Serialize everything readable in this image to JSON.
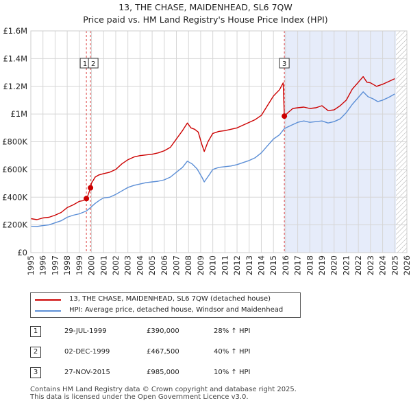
{
  "header": {
    "title": "13, THE CHASE, MAIDENHEAD, SL6 7QW",
    "subtitle": "Price paid vs. HM Land Registry's House Price Index (HPI)"
  },
  "chart_data": {
    "type": "line",
    "x_range": [
      1995,
      2026
    ],
    "ylim": [
      0,
      1600000
    ],
    "y_ticks": [
      {
        "value": 0,
        "label": "£0"
      },
      {
        "value": 200000,
        "label": "£200K"
      },
      {
        "value": 400000,
        "label": "£400K"
      },
      {
        "value": 600000,
        "label": "£600K"
      },
      {
        "value": 800000,
        "label": "£800K"
      },
      {
        "value": 1000000,
        "label": "£1M"
      },
      {
        "value": 1200000,
        "label": "£1.2M"
      },
      {
        "value": 1400000,
        "label": "£1.4M"
      },
      {
        "value": 1600000,
        "label": "£1.6M"
      }
    ],
    "x_ticks": [
      "1995",
      "1996",
      "1997",
      "1998",
      "1999",
      "2000",
      "2001",
      "2002",
      "2003",
      "2004",
      "2005",
      "2006",
      "2007",
      "2008",
      "2009",
      "2010",
      "2011",
      "2012",
      "2013",
      "2014",
      "2015",
      "2016",
      "2017",
      "2018",
      "2019",
      "2020",
      "2021",
      "2022",
      "2023",
      "2024",
      "2025",
      "2026"
    ],
    "grid": true,
    "shaded_region": {
      "from": 2015.9,
      "to": 2025.1
    },
    "forecast_hatch_from": 2025.1,
    "colors": {
      "property": "#cc0000",
      "hpi": "#5b8ed6",
      "shade": "#e6ecfa",
      "vline": "#dd4444"
    },
    "series": [
      {
        "name": "13, THE CHASE, MAIDENHEAD, SL6 7QW (detached house)",
        "color": "#cc0000",
        "points": [
          [
            1995.0,
            245000
          ],
          [
            1995.5,
            238000
          ],
          [
            1996.0,
            250000
          ],
          [
            1996.5,
            255000
          ],
          [
            1997.0,
            270000
          ],
          [
            1997.5,
            290000
          ],
          [
            1998.0,
            325000
          ],
          [
            1998.5,
            345000
          ],
          [
            1999.0,
            370000
          ],
          [
            1999.3,
            375000
          ],
          [
            1999.58,
            390000
          ],
          [
            1999.7,
            410000
          ],
          [
            1999.92,
            467500
          ],
          [
            2000.0,
            500000
          ],
          [
            2000.3,
            545000
          ],
          [
            2000.6,
            560000
          ],
          [
            2001.0,
            570000
          ],
          [
            2001.5,
            580000
          ],
          [
            2002.0,
            600000
          ],
          [
            2002.5,
            640000
          ],
          [
            2003.0,
            670000
          ],
          [
            2003.5,
            690000
          ],
          [
            2004.0,
            700000
          ],
          [
            2004.5,
            705000
          ],
          [
            2005.0,
            710000
          ],
          [
            2005.5,
            720000
          ],
          [
            2006.0,
            735000
          ],
          [
            2006.5,
            760000
          ],
          [
            2007.0,
            820000
          ],
          [
            2007.5,
            880000
          ],
          [
            2007.9,
            935000
          ],
          [
            2008.2,
            900000
          ],
          [
            2008.5,
            890000
          ],
          [
            2008.8,
            870000
          ],
          [
            2009.1,
            780000
          ],
          [
            2009.3,
            730000
          ],
          [
            2009.6,
            800000
          ],
          [
            2010.0,
            860000
          ],
          [
            2010.5,
            875000
          ],
          [
            2011.0,
            880000
          ],
          [
            2011.5,
            890000
          ],
          [
            2012.0,
            900000
          ],
          [
            2012.5,
            920000
          ],
          [
            2013.0,
            940000
          ],
          [
            2013.5,
            960000
          ],
          [
            2014.0,
            990000
          ],
          [
            2014.5,
            1060000
          ],
          [
            2015.0,
            1130000
          ],
          [
            2015.5,
            1175000
          ],
          [
            2015.8,
            1225000
          ],
          [
            2015.9,
            985000
          ],
          [
            2016.2,
            1010000
          ],
          [
            2016.6,
            1040000
          ],
          [
            2017.0,
            1045000
          ],
          [
            2017.5,
            1050000
          ],
          [
            2018.0,
            1040000
          ],
          [
            2018.5,
            1045000
          ],
          [
            2019.0,
            1060000
          ],
          [
            2019.5,
            1025000
          ],
          [
            2020.0,
            1030000
          ],
          [
            2020.5,
            1060000
          ],
          [
            2021.0,
            1100000
          ],
          [
            2021.5,
            1180000
          ],
          [
            2022.0,
            1230000
          ],
          [
            2022.4,
            1270000
          ],
          [
            2022.7,
            1230000
          ],
          [
            2023.0,
            1225000
          ],
          [
            2023.5,
            1200000
          ],
          [
            2024.0,
            1215000
          ],
          [
            2024.5,
            1235000
          ],
          [
            2025.0,
            1255000
          ]
        ]
      },
      {
        "name": "HPI: Average price, detached house, Windsor and Maidenhead",
        "color": "#5b8ed6",
        "points": [
          [
            1995.0,
            190000
          ],
          [
            1995.5,
            188000
          ],
          [
            1996.0,
            195000
          ],
          [
            1996.5,
            200000
          ],
          [
            1997.0,
            215000
          ],
          [
            1997.5,
            230000
          ],
          [
            1998.0,
            255000
          ],
          [
            1998.5,
            270000
          ],
          [
            1999.0,
            280000
          ],
          [
            1999.58,
            300000
          ],
          [
            1999.92,
            325000
          ],
          [
            2000.3,
            355000
          ],
          [
            2000.7,
            380000
          ],
          [
            2001.0,
            395000
          ],
          [
            2001.5,
            400000
          ],
          [
            2002.0,
            420000
          ],
          [
            2002.5,
            445000
          ],
          [
            2003.0,
            470000
          ],
          [
            2003.5,
            485000
          ],
          [
            2004.0,
            495000
          ],
          [
            2004.5,
            505000
          ],
          [
            2005.0,
            510000
          ],
          [
            2005.5,
            515000
          ],
          [
            2006.0,
            525000
          ],
          [
            2006.5,
            545000
          ],
          [
            2007.0,
            580000
          ],
          [
            2007.5,
            615000
          ],
          [
            2007.9,
            660000
          ],
          [
            2008.3,
            640000
          ],
          [
            2008.7,
            605000
          ],
          [
            2009.1,
            545000
          ],
          [
            2009.3,
            510000
          ],
          [
            2009.7,
            560000
          ],
          [
            2010.0,
            600000
          ],
          [
            2010.5,
            615000
          ],
          [
            2011.0,
            620000
          ],
          [
            2011.5,
            625000
          ],
          [
            2012.0,
            635000
          ],
          [
            2012.5,
            650000
          ],
          [
            2013.0,
            665000
          ],
          [
            2013.5,
            685000
          ],
          [
            2014.0,
            720000
          ],
          [
            2014.5,
            770000
          ],
          [
            2015.0,
            820000
          ],
          [
            2015.5,
            850000
          ],
          [
            2015.9,
            895000
          ],
          [
            2016.5,
            920000
          ],
          [
            2017.0,
            940000
          ],
          [
            2017.5,
            950000
          ],
          [
            2018.0,
            940000
          ],
          [
            2018.5,
            945000
          ],
          [
            2019.0,
            950000
          ],
          [
            2019.5,
            935000
          ],
          [
            2020.0,
            945000
          ],
          [
            2020.5,
            965000
          ],
          [
            2021.0,
            1010000
          ],
          [
            2021.5,
            1070000
          ],
          [
            2022.0,
            1120000
          ],
          [
            2022.4,
            1160000
          ],
          [
            2022.8,
            1125000
          ],
          [
            2023.2,
            1110000
          ],
          [
            2023.6,
            1090000
          ],
          [
            2024.0,
            1100000
          ],
          [
            2024.5,
            1120000
          ],
          [
            2025.0,
            1145000
          ]
        ]
      }
    ],
    "sales_markers": [
      {
        "id": "1",
        "date": 1999.58,
        "value": 390000
      },
      {
        "id": "2",
        "date": 1999.92,
        "value": 467500
      },
      {
        "id": "3",
        "date": 2015.9,
        "value": 985000
      }
    ]
  },
  "legend": {
    "property_label": "13, THE CHASE, MAIDENHEAD, SL6 7QW (detached house)",
    "hpi_label": "HPI: Average price, detached house, Windsor and Maidenhead"
  },
  "sales": [
    {
      "id": "1",
      "date": "29-JUL-1999",
      "price": "£390,000",
      "hpi": "28% ↑ HPI"
    },
    {
      "id": "2",
      "date": "02-DEC-1999",
      "price": "£467,500",
      "hpi": "40% ↑ HPI"
    },
    {
      "id": "3",
      "date": "27-NOV-2015",
      "price": "£985,000",
      "hpi": "10% ↑ HPI"
    }
  ],
  "footer": {
    "line1": "Contains HM Land Registry data © Crown copyright and database right 2025.",
    "line2": "This data is licensed under the Open Government Licence v3.0."
  }
}
